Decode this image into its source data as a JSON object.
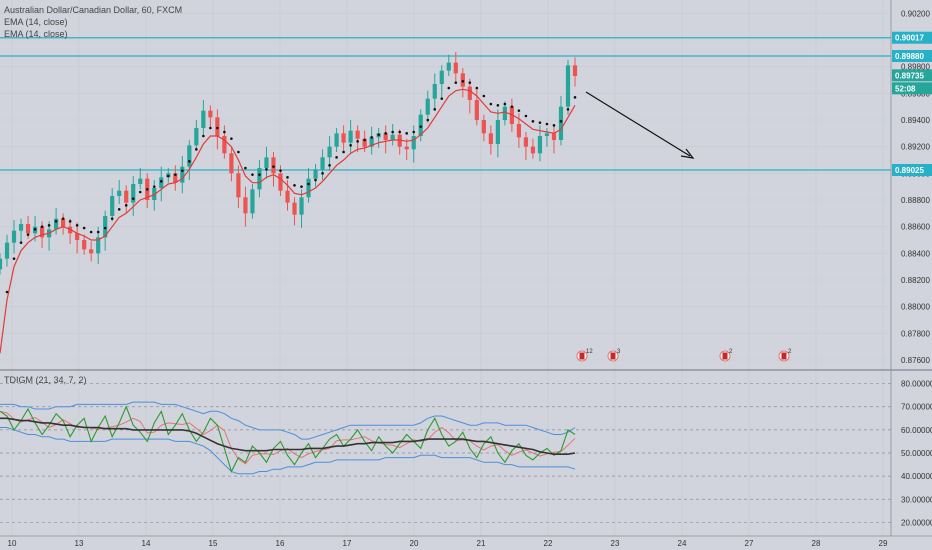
{
  "chart_data": {
    "type": "candlestick",
    "title": "Australian Dollar/Canadian Dollar, 60, FXCM",
    "legends": [
      "EMA (14, close)",
      "EMA (14, close)"
    ],
    "x_ticks": [
      "10",
      "13",
      "14",
      "15",
      "16",
      "17",
      "20",
      "21",
      "22",
      "23",
      "24",
      "27",
      "28",
      "29"
    ],
    "y_ticks": [
      "0.90200",
      "0.90000",
      "0.89800",
      "0.89600",
      "0.89400",
      "0.89200",
      "0.89000",
      "0.88800",
      "0.88600",
      "0.88400",
      "0.88200",
      "0.88000",
      "0.87800",
      "0.87600"
    ],
    "ylim": [
      0.8754,
      0.903
    ],
    "hlines": [
      "0.90017",
      "0.89880",
      "0.89025"
    ],
    "price_tags": {
      "last": "0.89735",
      "timer": "52:08"
    },
    "colors": {
      "up": "#26a69a",
      "down": "#ef5350",
      "hline": "#26b1c8",
      "ema_red": "#e53935",
      "ema_dots": "#111111",
      "osc_green": "#2e9a2e",
      "osc_red": "#e57373",
      "osc_black": "#333333",
      "osc_blue": "#4a90d9"
    },
    "closes": [
      0.8836,
      0.8848,
      0.8857,
      0.8862,
      0.8855,
      0.886,
      0.8852,
      0.8858,
      0.8866,
      0.886,
      0.8855,
      0.885,
      0.8843,
      0.884,
      0.8852,
      0.8868,
      0.8883,
      0.8887,
      0.8878,
      0.8892,
      0.8896,
      0.888,
      0.8889,
      0.8897,
      0.89,
      0.8893,
      0.8905,
      0.8921,
      0.8934,
      0.8947,
      0.8942,
      0.8928,
      0.8915,
      0.89,
      0.8882,
      0.887,
      0.8888,
      0.8904,
      0.8912,
      0.89,
      0.8887,
      0.8878,
      0.8869,
      0.8882,
      0.8896,
      0.8903,
      0.8912,
      0.892,
      0.893,
      0.8923,
      0.8932,
      0.8926,
      0.892,
      0.8927,
      0.893,
      0.8925,
      0.8929,
      0.892,
      0.8918,
      0.8928,
      0.8944,
      0.8956,
      0.8967,
      0.8977,
      0.8983,
      0.8975,
      0.8965,
      0.8955,
      0.894,
      0.893,
      0.8922,
      0.894,
      0.895,
      0.8937,
      0.8927,
      0.892,
      0.8915,
      0.8928,
      0.893,
      0.8925,
      0.895,
      0.8981,
      0.8973
    ],
    "ema_red": [
      0.8765,
      0.8805,
      0.883,
      0.8842,
      0.8848,
      0.8852,
      0.8854,
      0.8855,
      0.8858,
      0.886,
      0.8858,
      0.8855,
      0.8853,
      0.885,
      0.885,
      0.8853,
      0.886,
      0.8867,
      0.887,
      0.8875,
      0.888,
      0.8882,
      0.8884,
      0.8888,
      0.8892,
      0.8893,
      0.8896,
      0.8903,
      0.8912,
      0.8922,
      0.8928,
      0.8928,
      0.8925,
      0.892,
      0.891,
      0.8898,
      0.8893,
      0.8893,
      0.8897,
      0.8899,
      0.8896,
      0.8891,
      0.8885,
      0.8884,
      0.8886,
      0.8889,
      0.8894,
      0.89,
      0.8906,
      0.891,
      0.8915,
      0.8918,
      0.8919,
      0.8921,
      0.8923,
      0.8924,
      0.8925,
      0.8925,
      0.8924,
      0.8925,
      0.8929,
      0.8934,
      0.8942,
      0.895,
      0.8958,
      0.8962,
      0.8963,
      0.8962,
      0.8958,
      0.8952,
      0.8946,
      0.8945,
      0.8946,
      0.8944,
      0.8941,
      0.8937,
      0.8933,
      0.8932,
      0.8931,
      0.893,
      0.8933,
      0.8942,
      0.8951
    ],
    "osc_ylim": [
      15,
      85
    ],
    "osc_ticks": [
      "80.000000",
      "70.000000",
      "60.000000",
      "50.000000",
      "40.000000",
      "30.000000",
      "20.000000"
    ],
    "osc_legend": "TDIGM (21, 34, 7, 2)",
    "osc_green": [
      68,
      66,
      60,
      64,
      69,
      63,
      58,
      62,
      67,
      64,
      57,
      62,
      65,
      55,
      61,
      66,
      57,
      63,
      70,
      62,
      59,
      55,
      63,
      68,
      58,
      62,
      67,
      60,
      55,
      59,
      65,
      62,
      52,
      42,
      48,
      46,
      53,
      50,
      46,
      52,
      55,
      49,
      45,
      50,
      54,
      48,
      52,
      56,
      58,
      53,
      56,
      60,
      55,
      51,
      57,
      53,
      50,
      54,
      58,
      55,
      52,
      60,
      65,
      58,
      53,
      55,
      59,
      52,
      48,
      54,
      57,
      50,
      46,
      51,
      54,
      49,
      47,
      50,
      52,
      49,
      51,
      60,
      58
    ],
    "osc_black": [
      65,
      65,
      64.5,
      64,
      64,
      63.5,
      63,
      63,
      62.5,
      62,
      62,
      61.5,
      61,
      61,
      61,
      60.5,
      60.5,
      60.5,
      60.5,
      60,
      60,
      60,
      60,
      60,
      60,
      60,
      60,
      59.5,
      58.5,
      57,
      55.5,
      54,
      53,
      52,
      51.5,
      51,
      51,
      51,
      51,
      51.5,
      51.5,
      51.5,
      51.5,
      51.5,
      52,
      52,
      52,
      52.5,
      53,
      53,
      53.5,
      54,
      54,
      54.5,
      54.5,
      54.5,
      54.5,
      55,
      55,
      55,
      55.5,
      56,
      56,
      56,
      56,
      56,
      56,
      55.5,
      55,
      55,
      54.5,
      54,
      53.5,
      53,
      52.5,
      52,
      51.5,
      50.5,
      50,
      49.5,
      49.5,
      49.5,
      50
    ],
    "osc_upper": [
      71,
      71,
      71,
      70,
      70,
      69,
      69,
      69,
      70,
      70,
      70,
      71,
      71,
      71,
      71,
      71,
      71,
      71,
      71,
      72,
      72,
      72,
      72,
      71,
      71,
      71,
      70,
      69,
      68,
      67,
      68,
      68,
      67,
      65,
      64,
      62,
      61,
      60,
      60,
      60,
      60,
      59,
      58,
      56,
      56,
      57,
      58,
      59,
      60,
      61,
      62,
      62,
      62,
      62,
      62,
      62,
      62,
      62,
      62,
      62,
      63,
      65,
      66,
      66,
      65,
      64,
      63,
      62,
      62,
      63,
      63,
      63,
      62,
      62,
      62,
      62,
      61,
      60,
      59,
      58,
      58,
      59,
      61
    ],
    "osc_lower": [
      61,
      61,
      60,
      59,
      58,
      58,
      57,
      57,
      56,
      56,
      55,
      55,
      55,
      55,
      55,
      55,
      56,
      56,
      56,
      56,
      56,
      56,
      56,
      56,
      56,
      55,
      55,
      55,
      54,
      53,
      51,
      48,
      45,
      42,
      41,
      41,
      41,
      42,
      42,
      43,
      43,
      44,
      44,
      44,
      45,
      46,
      46,
      46,
      47,
      47,
      47,
      47,
      47,
      47,
      47,
      48,
      48,
      48,
      48,
      48,
      49,
      49,
      49,
      48,
      48,
      48,
      48,
      48,
      47,
      46,
      46,
      46,
      45,
      45,
      44,
      44,
      44,
      44,
      44,
      44,
      44,
      44,
      43
    ]
  },
  "events": [
    "12",
    "3",
    "2",
    "2"
  ]
}
